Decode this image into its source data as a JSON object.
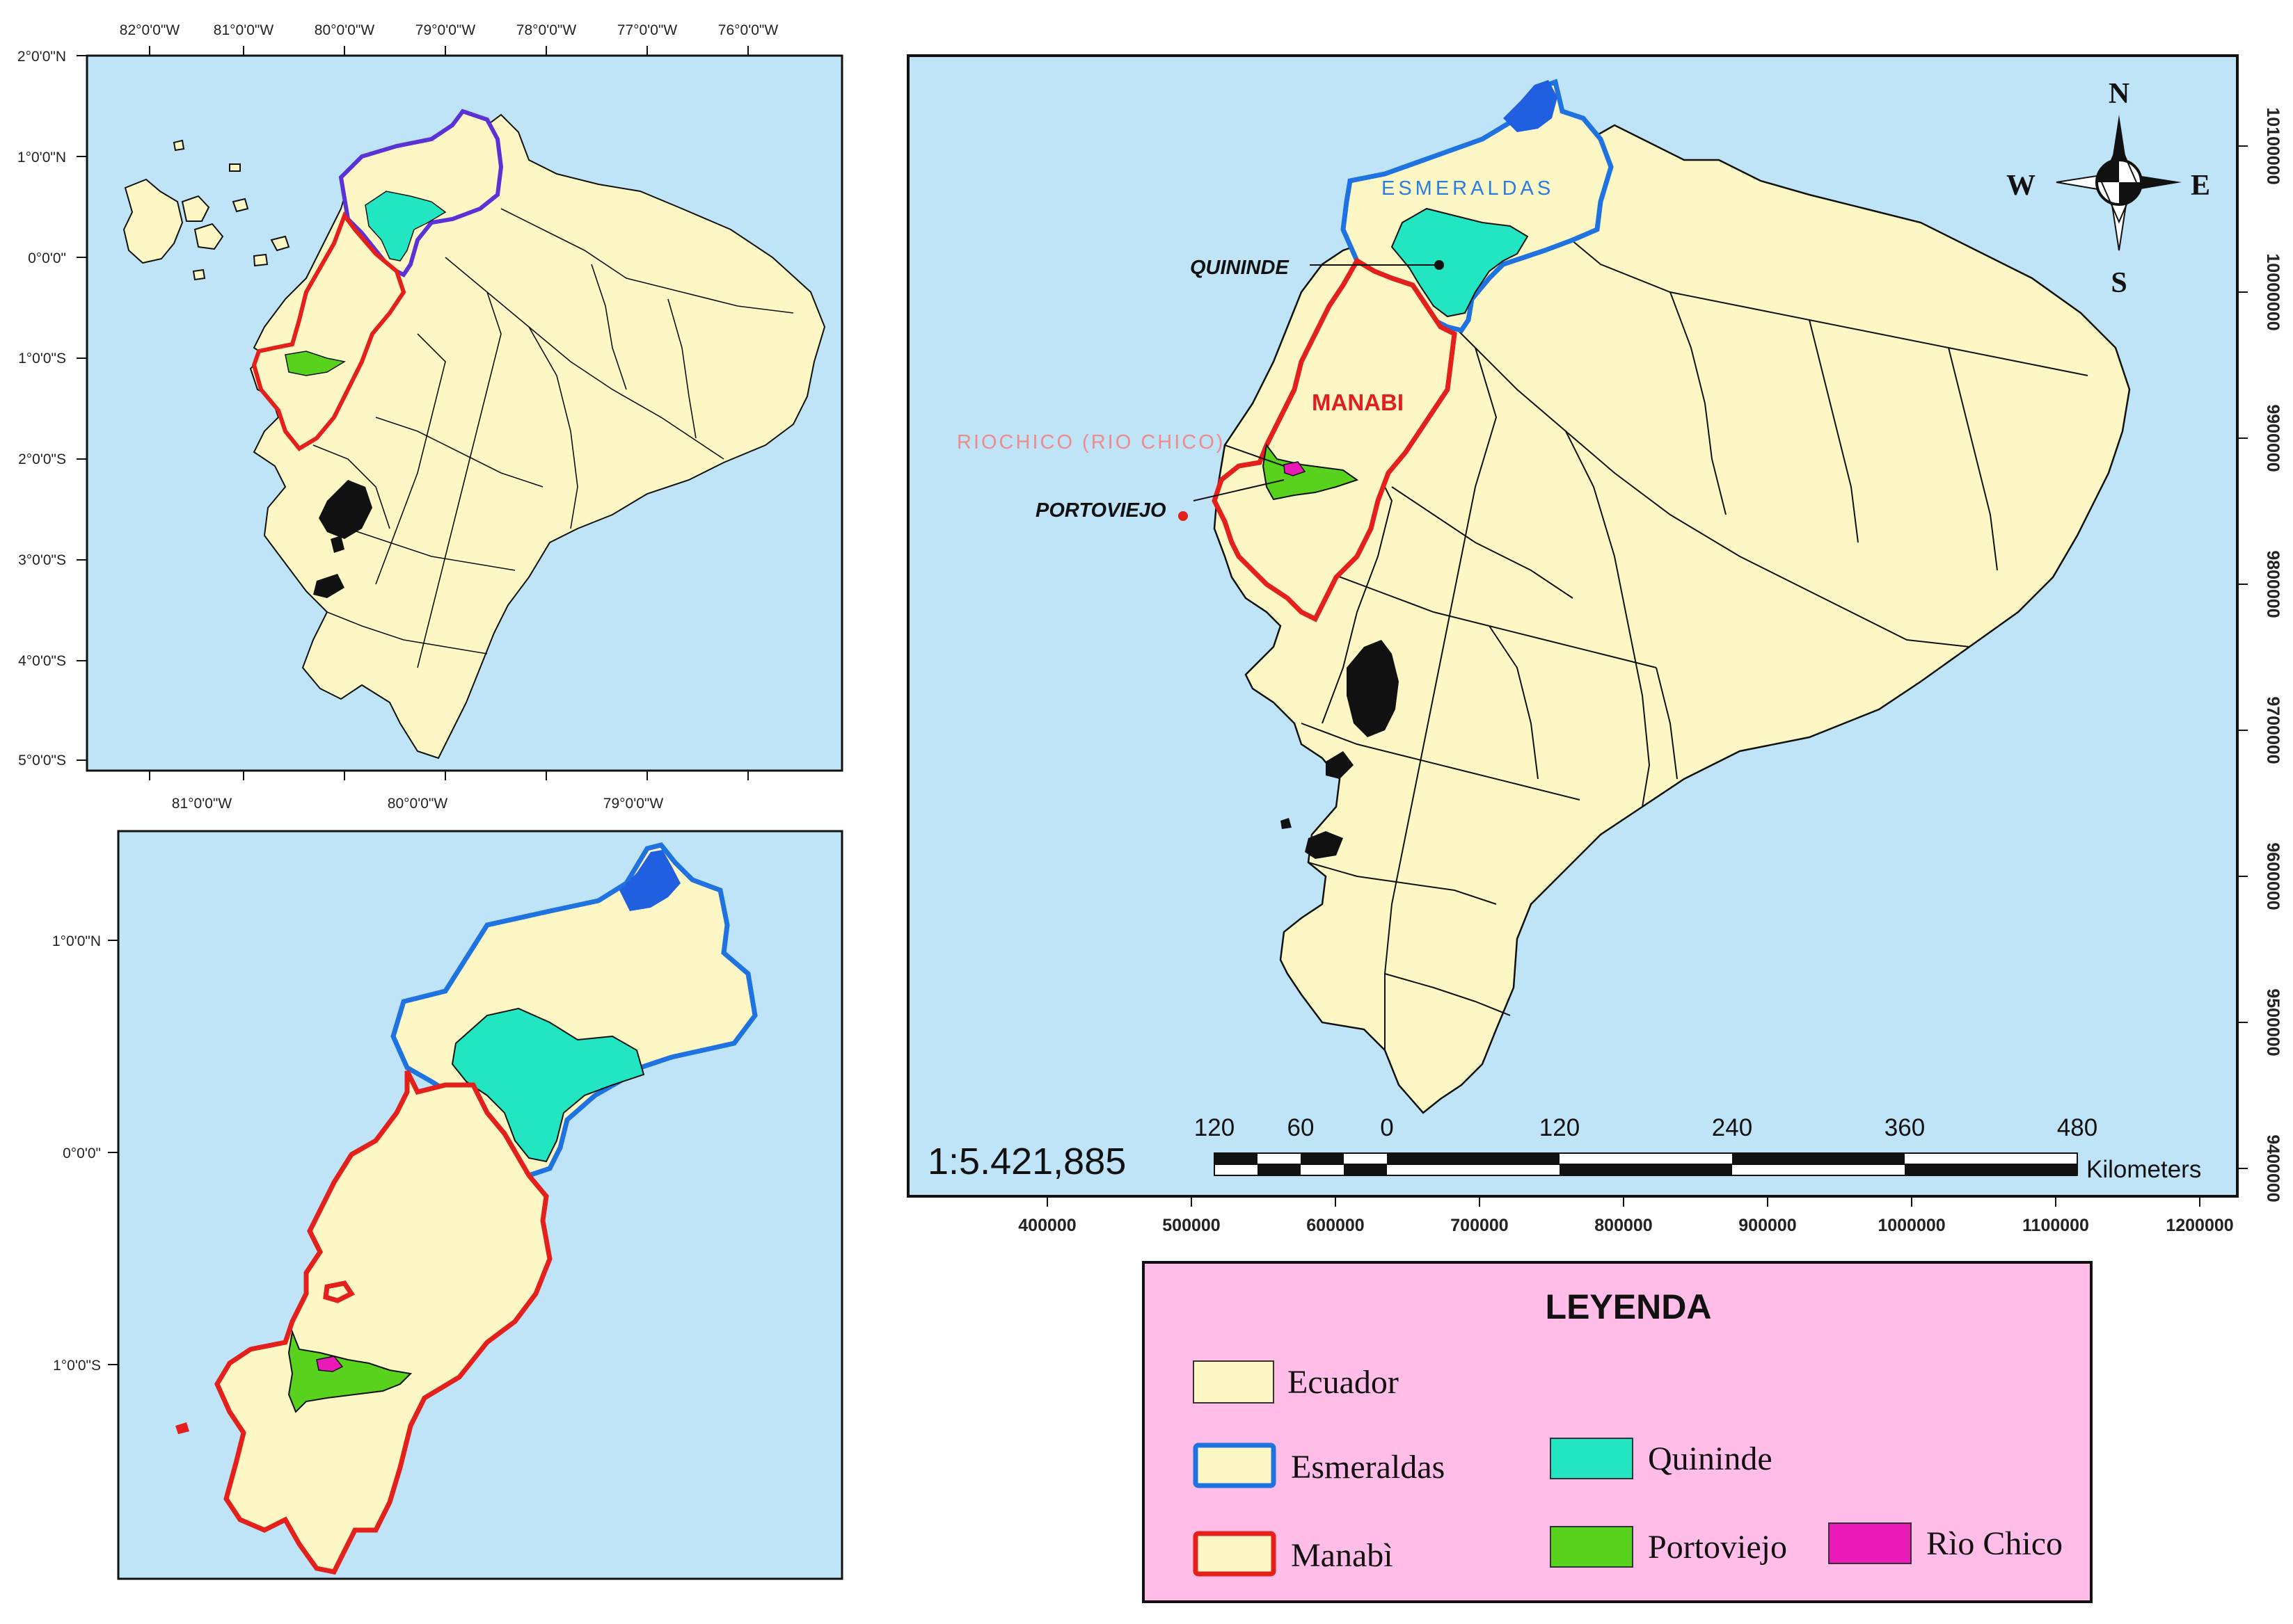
{
  "colors": {
    "ocean": "#bfe3f7",
    "land": "#fdf7c6",
    "esmeraldas_border": "#1f73e0",
    "esmeraldas_border_overview": "#5b32d6",
    "manabi_border": "#e3201b",
    "quininde": "#21e6c1",
    "portoviejo": "#59d21d",
    "rio_chico": "#ea1ab9",
    "legend_bg": "#ffbde8",
    "pacific_blue_patch": "#1f5fe0"
  },
  "overview_map": {
    "top_lon_labels": [
      "82°0'0\"W",
      "81°0'0\"W",
      "80°0'0\"W",
      "79°0'0\"W",
      "78°0'0\"W",
      "77°0'0\"W",
      "76°0'0\"W"
    ],
    "bottom_lon_labels": [
      "81°0'0\"W",
      "80°0'0\"W",
      "79°0'0\"W"
    ],
    "lat_labels": [
      "2°0'0\"N",
      "1°0'0\"N",
      "0°0'0\"",
      "1°0'0\"S",
      "2°0'0\"S",
      "3°0'0\"S",
      "4°0'0\"S",
      "5°0'0\"S"
    ]
  },
  "zoom_map": {
    "lat_labels": [
      "1°0'0\"N",
      "0°0'0\"",
      "1°0'0\"S"
    ]
  },
  "main_map": {
    "labels": {
      "esmeraldas": "ESMERALDAS",
      "quininde": "QUININDE",
      "manabi": "MANABI",
      "riochico": "RIOCHICO (RIO CHICO)",
      "portoviejo": "PORTOVIEJO"
    },
    "x_labels": [
      "400000",
      "500000",
      "600000",
      "700000",
      "800000",
      "900000",
      "1000000",
      "1100000",
      "1200000"
    ],
    "y_labels": [
      "10100000",
      "10000000",
      "9900000",
      "9800000",
      "9700000",
      "9600000",
      "9500000",
      "9400000"
    ],
    "scale_ratio": "1:5.421,885",
    "scale_ticks": [
      "120",
      "60",
      "0",
      "120",
      "240",
      "360",
      "480"
    ],
    "scale_unit": "Kilometers",
    "compass": {
      "n": "N",
      "s": "S",
      "e": "E",
      "w": "W"
    }
  },
  "legend": {
    "title": "LEYENDA",
    "items": [
      {
        "label": "Ecuador"
      },
      {
        "label": "Esmeraldas"
      },
      {
        "label": "Manabì"
      },
      {
        "label": "Quininde"
      },
      {
        "label": "Portoviejo"
      },
      {
        "label": "Rìo Chico"
      }
    ]
  }
}
